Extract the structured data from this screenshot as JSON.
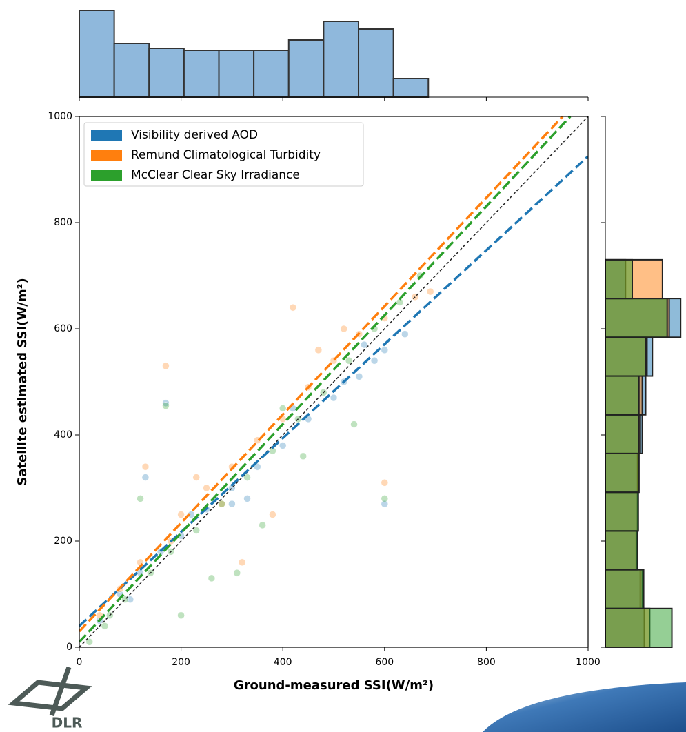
{
  "chart_data": {
    "type": "scatter",
    "x_label": "Ground-measured SSI(W/m²)",
    "y_label": "Satellite estimated SSI(W/m²)",
    "xlim": [
      0,
      1000
    ],
    "ylim": [
      0,
      1000
    ],
    "xticks": [
      0,
      200,
      400,
      600,
      800,
      1000
    ],
    "yticks": [
      0,
      200,
      400,
      600,
      800,
      1000
    ],
    "legend": "upper left",
    "series": [
      {
        "name": "Visibility derived AOD",
        "color": "#1f77b4",
        "x": [
          40,
          80,
          120,
          160,
          200,
          250,
          300,
          350,
          400,
          450,
          500,
          550,
          600,
          640,
          580,
          170,
          600,
          130,
          330,
          420,
          520,
          560,
          300,
          220,
          100
        ],
        "values": [
          50,
          100,
          140,
          180,
          210,
          260,
          300,
          340,
          380,
          430,
          470,
          510,
          560,
          590,
          540,
          460,
          270,
          320,
          280,
          450,
          500,
          570,
          270,
          250,
          90
        ],
        "fit_x": [
          0,
          1000
        ],
        "fit_values": [
          40,
          925
        ]
      },
      {
        "name": "Remund Climatological Turbidity",
        "color": "#ff7f0e",
        "x": [
          40,
          80,
          120,
          170,
          200,
          250,
          300,
          350,
          400,
          420,
          450,
          500,
          550,
          600,
          660,
          690,
          600,
          130,
          380,
          320,
          230,
          180,
          280,
          470,
          520
        ],
        "values": [
          60,
          110,
          160,
          530,
          250,
          300,
          340,
          390,
          430,
          640,
          490,
          540,
          590,
          620,
          660,
          670,
          310,
          340,
          250,
          160,
          320,
          200,
          270,
          560,
          600
        ],
        "fit_x": [
          0,
          950
        ],
        "fit_values": [
          30,
          1000
        ]
      },
      {
        "name": "McClear Clear Sky Irradiance",
        "color": "#2ca02c",
        "x": [
          20,
          50,
          90,
          140,
          180,
          230,
          280,
          330,
          380,
          430,
          480,
          530,
          580,
          630,
          670,
          170,
          600,
          120,
          200,
          260,
          310,
          360,
          440,
          540,
          400,
          60
        ],
        "values": [
          10,
          40,
          90,
          140,
          180,
          220,
          270,
          320,
          370,
          430,
          480,
          540,
          600,
          650,
          700,
          455,
          280,
          280,
          60,
          130,
          140,
          230,
          360,
          420,
          450,
          60
        ],
        "fit_x": [
          0,
          965
        ],
        "fit_values": [
          10,
          1000
        ]
      }
    ],
    "identity_line": {
      "x": [
        0,
        1000
      ],
      "values": [
        0,
        1000
      ]
    },
    "x_marginal_hist": {
      "color": "#8fb8dc",
      "bins": [
        0,
        68.6,
        137.2,
        205.8,
        274.4,
        343,
        411.6,
        480.2,
        548.8,
        617.4,
        686
      ],
      "counts": [
        126,
        78,
        71,
        68,
        68,
        68,
        83,
        110,
        99,
        27
      ],
      "ylim": [
        0,
        126
      ]
    },
    "y_marginal_hist": {
      "bins": [
        0,
        73,
        146,
        219,
        292,
        365,
        438,
        511,
        584,
        657,
        730
      ],
      "xlim": [
        0,
        120
      ],
      "series": [
        {
          "color": "#1f77b4",
          "counts": [
            58,
            52,
            46,
            48,
            48,
            55,
            60,
            70,
            112,
            30
          ]
        },
        {
          "color": "#ff7f0e",
          "counts": [
            66,
            55,
            47,
            48,
            50,
            52,
            55,
            62,
            95,
            85
          ]
        },
        {
          "color": "#2ca02c",
          "counts": [
            99,
            57,
            48,
            49,
            50,
            50,
            50,
            60,
            92,
            40
          ]
        }
      ]
    }
  },
  "logo_text": "DLR"
}
